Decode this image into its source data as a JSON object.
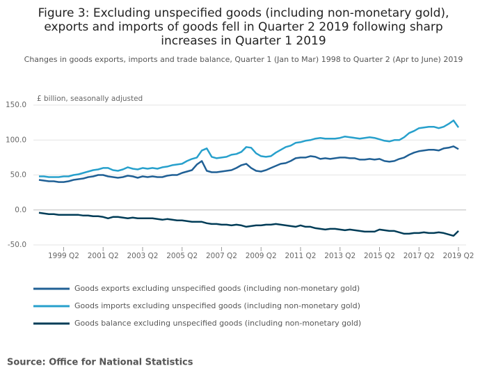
{
  "chart_data": {
    "type": "line",
    "title": [
      "Figure 3: Excluding unspecified goods (including non-monetary gold),",
      "exports and imports of goods fell in Quarter 2 2019 following sharp",
      "increases in Quarter 1 2019"
    ],
    "subtitle": "Changes in goods exports, imports and trade balance, Quarter 1 (Jan to Mar) 1998 to Quarter 2 (Apr to June) 2019",
    "y_label": "£ billion, seasonally adjusted",
    "source": "Source: Office for National Statistics",
    "categories": [
      null,
      null,
      null,
      null,
      null,
      "1999 Q2",
      null,
      null,
      null,
      null,
      null,
      null,
      null,
      "2001 Q2",
      null,
      null,
      null,
      null,
      null,
      null,
      null,
      "2003 Q2",
      null,
      null,
      null,
      null,
      null,
      null,
      null,
      "2005 Q2",
      null,
      null,
      null,
      null,
      null,
      null,
      null,
      "2007 Q2",
      null,
      null,
      null,
      null,
      null,
      null,
      null,
      "2009 Q2",
      null,
      null,
      null,
      null,
      null,
      null,
      null,
      "2011 Q2",
      null,
      null,
      null,
      null,
      null,
      null,
      null,
      "2013 Q2",
      null,
      null,
      null,
      null,
      null,
      null,
      null,
      "2015 Q2",
      null,
      null,
      null,
      null,
      null,
      null,
      null,
      "2017 Q2",
      null,
      null,
      null,
      null,
      null,
      null,
      null,
      "2019 Q2"
    ],
    "series": [
      {
        "name": "Goods exports excluding unspecified goods (including non-monetary gold)",
        "color": "#206095",
        "values": [
          43,
          42,
          41,
          41,
          40,
          40,
          41,
          43,
          44,
          45,
          47,
          48,
          50,
          50,
          48,
          47,
          46,
          47,
          49,
          48,
          46,
          48,
          47,
          48,
          47,
          47,
          49,
          50,
          50,
          53,
          55,
          57,
          65,
          70,
          56,
          54,
          54,
          55,
          56,
          57,
          60,
          64,
          66,
          60,
          56,
          55,
          57,
          60,
          63,
          66,
          67,
          70,
          74,
          75,
          75,
          77,
          76,
          73,
          74,
          73,
          74,
          75,
          75,
          74,
          74,
          72,
          72,
          73,
          72,
          73,
          70,
          69,
          70,
          73,
          75,
          79,
          82,
          84,
          85,
          86,
          86,
          85,
          88,
          89,
          91,
          87
        ]
      },
      {
        "name": "Goods imports excluding unspecified goods (including non-monetary gold)",
        "color": "#27a0cc",
        "values": [
          48,
          48,
          47,
          47,
          47,
          48,
          48,
          50,
          51,
          53,
          55,
          57,
          58,
          60,
          60,
          57,
          56,
          58,
          61,
          59,
          58,
          60,
          59,
          60,
          59,
          61,
          62,
          64,
          65,
          66,
          70,
          73,
          75,
          85,
          88,
          76,
          74,
          75,
          76,
          79,
          80,
          83,
          90,
          89,
          81,
          77,
          76,
          77,
          82,
          86,
          90,
          92,
          96,
          97,
          99,
          100,
          102,
          103,
          102,
          102,
          102,
          103,
          105,
          104,
          103,
          102,
          103,
          104,
          103,
          101,
          99,
          98,
          100,
          100,
          104,
          110,
          113,
          117,
          118,
          119,
          119,
          117,
          119,
          123,
          128,
          118
        ]
      },
      {
        "name": "Goods balance excluding unspecified goods (including non-monetary gold)",
        "color": "#003c57",
        "values": [
          -4,
          -5,
          -6,
          -6,
          -7,
          -7,
          -7,
          -7,
          -7,
          -8,
          -8,
          -9,
          -9,
          -10,
          -12,
          -10,
          -10,
          -11,
          -12,
          -11,
          -12,
          -12,
          -12,
          -12,
          -13,
          -14,
          -13,
          -14,
          -15,
          -15,
          -16,
          -17,
          -17,
          -17,
          -19,
          -20,
          -20,
          -21,
          -21,
          -22,
          -21,
          -22,
          -24,
          -23,
          -22,
          -22,
          -21,
          -21,
          -20,
          -21,
          -22,
          -23,
          -24,
          -22,
          -24,
          -24,
          -26,
          -27,
          -28,
          -27,
          -27,
          -28,
          -29,
          -28,
          -29,
          -30,
          -31,
          -31,
          -31,
          -28,
          -29,
          -30,
          -30,
          -32,
          -34,
          -34,
          -33,
          -33,
          -32,
          -33,
          -33,
          -32,
          -33,
          -35,
          -37,
          -30
        ]
      }
    ],
    "ylim": [
      -50,
      150
    ],
    "yticks": [
      {
        "value": -50,
        "label": "-50.0"
      },
      {
        "value": 0,
        "label": "0.0"
      },
      {
        "value": 50,
        "label": "50.0"
      },
      {
        "value": 100,
        "label": "100.0"
      },
      {
        "value": 150,
        "label": "150.0"
      }
    ],
    "grid": true
  }
}
